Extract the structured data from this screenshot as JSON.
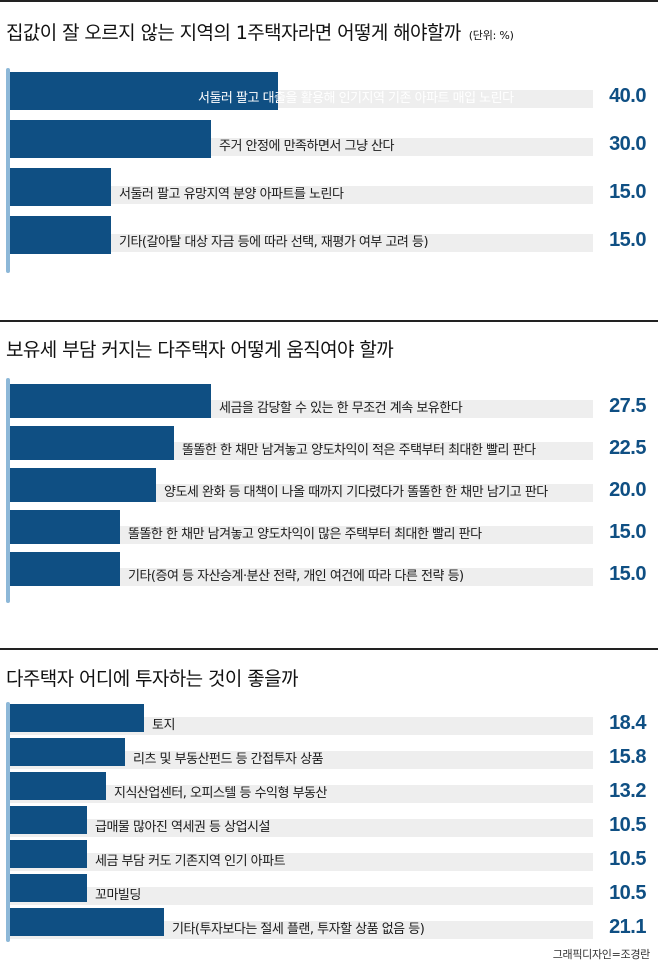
{
  "credit": "그래픽디자인=조경란",
  "chart_data": [
    {
      "type": "bar",
      "title": "집값이 잘 오르지 않는 지역의 1주택자라면 어떻게 해야할까",
      "unit": "(단위: %)",
      "categories": [
        "서둘러 팔고 대출을 활용해 인기지역 기존 아파트 매입 노린다",
        "주거 안정에 만족하면서 그냥 산다",
        "서둘러 팔고 유망지역 분양 아파트를 노린다",
        "기타(갈아탈 대상 자금 등에 따라 선택, 재평가 여부 고려 등)"
      ],
      "values": [
        40.0,
        30.0,
        15.0,
        15.0
      ],
      "labels": [
        "40.0",
        "30.0",
        "15.0",
        "15.0"
      ]
    },
    {
      "type": "bar",
      "title": "보유세 부담 커지는 다주택자 어떻게 움직여야 할까",
      "categories": [
        "세금을 감당할 수 있는 한 무조건 계속 보유한다",
        "똘똘한 한 채만 남겨놓고 양도차익이 적은 주택부터 최대한 빨리 판다",
        "양도세 완화 등 대책이 나올 때까지 기다렸다가 똘똘한 한 채만 남기고 판다",
        "똘똘한 한 채만 남겨놓고 양도차익이 많은 주택부터 최대한 빨리 판다",
        "기타(증여 등 자산승계·분산 전략, 개인 여건에 따라 다른 전략 등)"
      ],
      "values": [
        27.5,
        22.5,
        20.0,
        15.0,
        15.0
      ],
      "labels": [
        "27.5",
        "22.5",
        "20.0",
        "15.0",
        "15.0"
      ]
    },
    {
      "type": "bar",
      "title": "다주택자 어디에 투자하는 것이 좋을까",
      "categories": [
        "토지",
        "리츠 및 부동산펀드 등 간접투자 상품",
        "지식산업센터, 오피스텔 등 수익형 부동산",
        "급매물 많아진 역세권 등 상업시설",
        "세금 부담 커도 기존지역 인기 아파트",
        "꼬마빌딩",
        "기타(투자보다는 절세 플랜, 투자할 상품 없음 등)"
      ],
      "values": [
        18.4,
        15.8,
        13.2,
        10.5,
        10.5,
        10.5,
        21.1
      ],
      "labels": [
        "18.4",
        "15.8",
        "13.2",
        "10.5",
        "10.5",
        "10.5",
        "21.1"
      ]
    }
  ]
}
